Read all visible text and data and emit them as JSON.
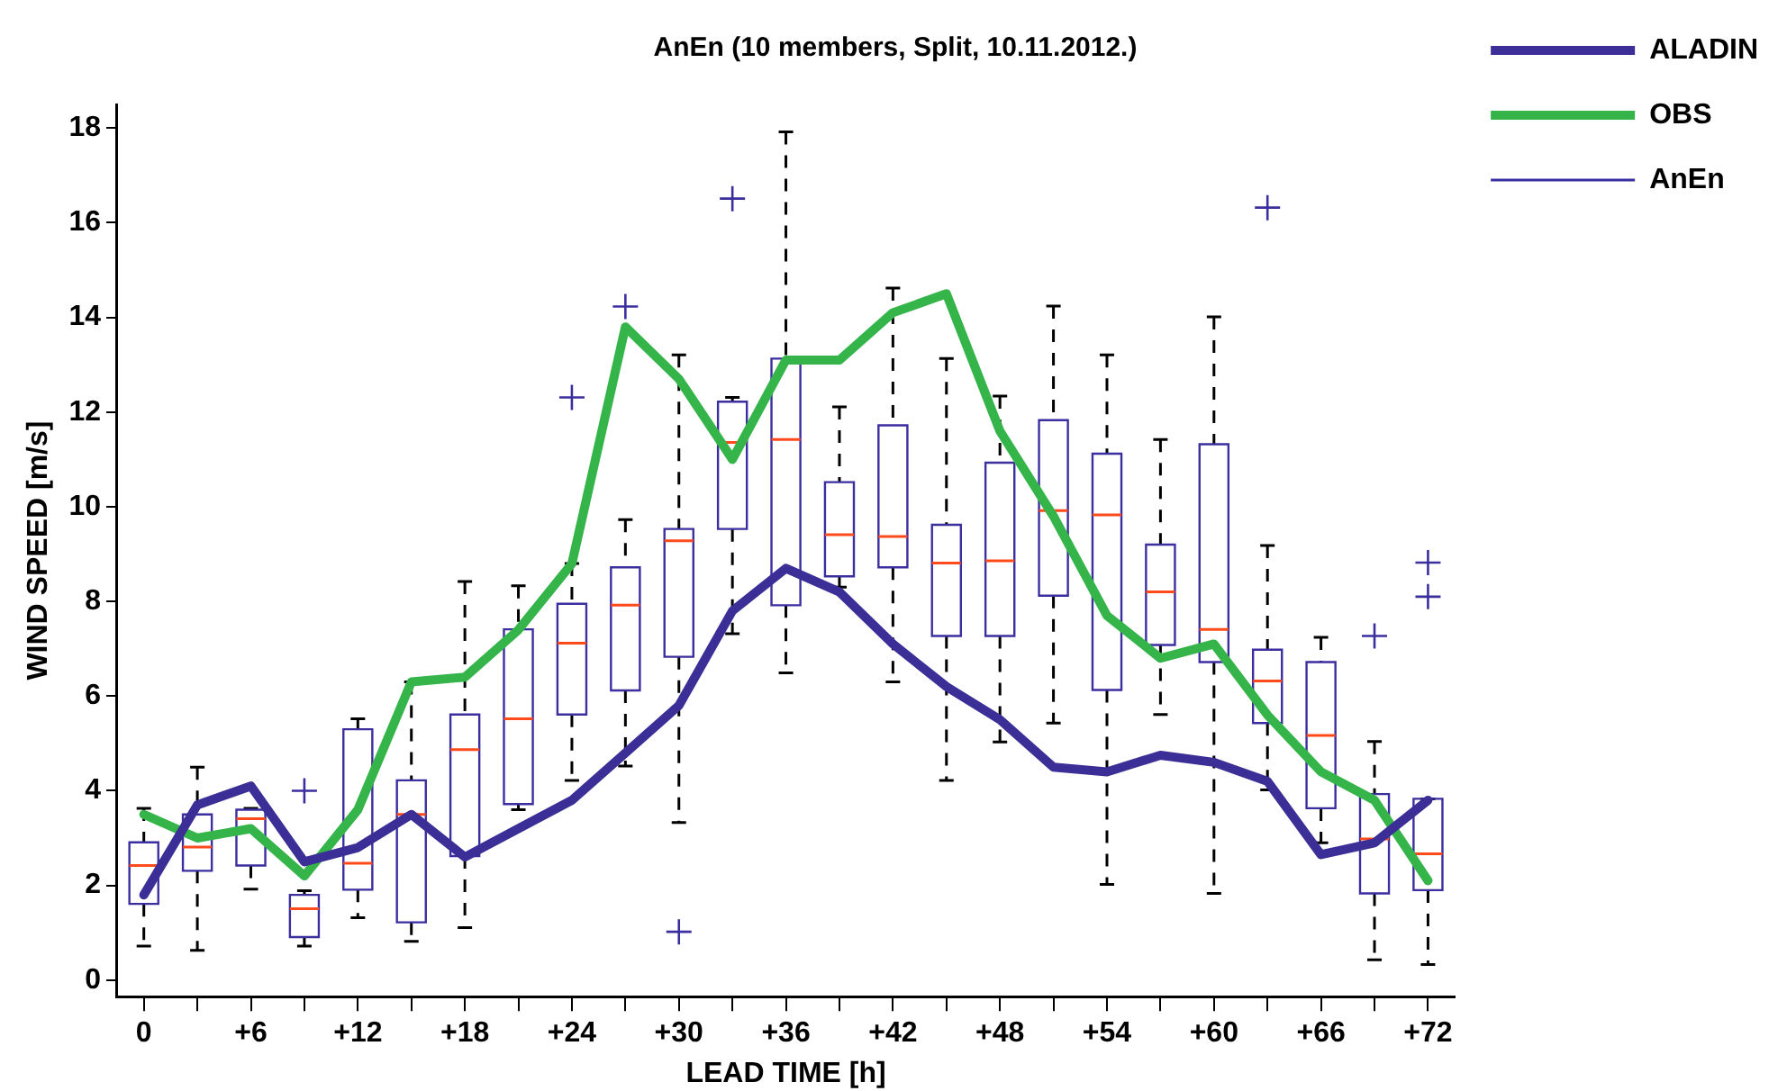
{
  "chart_data": {
    "type": "box",
    "title": "AnEn (10 members, Split, 10.11.2012.)",
    "xlabel": "LEAD TIME [h]",
    "ylabel": "WIND SPEED [m/s]",
    "categories": [
      "0",
      null,
      "+6",
      null,
      "+12",
      null,
      "+18",
      null,
      "+24",
      null,
      "+30",
      null,
      "+36",
      null,
      "+42",
      null,
      "+48",
      null,
      "+54",
      null,
      "+60",
      null,
      "+66",
      null,
      "+72"
    ],
    "ylim": [
      -0.35,
      18.5
    ],
    "yticks": [
      0,
      2,
      4,
      6,
      8,
      10,
      12,
      14,
      16,
      18
    ],
    "grid": false,
    "legend": "top right",
    "series": [
      {
        "name": "ALADIN",
        "type": "line",
        "color": "#3b2e96",
        "values": [
          1.8,
          3.7,
          4.1,
          2.5,
          2.8,
          3.5,
          2.6,
          3.2,
          3.8,
          4.8,
          5.8,
          7.8,
          8.7,
          8.2,
          7.1,
          6.2,
          5.5,
          4.5,
          4.4,
          4.75,
          4.6,
          4.2,
          2.65,
          2.9,
          3.8
        ]
      },
      {
        "name": "OBS",
        "type": "line",
        "color": "#35b44a",
        "values": [
          3.5,
          3.0,
          3.2,
          2.2,
          3.6,
          6.3,
          6.4,
          7.4,
          8.8,
          13.8,
          12.7,
          11.0,
          13.1,
          13.1,
          14.1,
          14.5,
          11.6,
          9.8,
          7.7,
          6.8,
          7.1,
          5.6,
          4.4,
          3.8,
          2.1
        ]
      },
      {
        "name": "AnEn",
        "type": "box",
        "color": "#3b2fa0",
        "boxes": [
          {
            "low": 0.72,
            "q1": 1.61,
            "median": 2.42,
            "q3": 2.91,
            "high": 3.63
          },
          {
            "low": 0.63,
            "q1": 2.31,
            "median": 2.81,
            "q3": 3.5,
            "high": 4.5
          },
          {
            "low": 1.92,
            "q1": 2.42,
            "median": 3.41,
            "q3": 3.6,
            "high": 3.63
          },
          {
            "low": 0.72,
            "q1": 0.91,
            "median": 1.51,
            "q3": 1.8,
            "high": 1.89,
            "outliers": [
              4.0
            ]
          },
          {
            "low": 1.32,
            "q1": 1.91,
            "median": 2.47,
            "q3": 5.3,
            "high": 5.52
          },
          {
            "low": 0.82,
            "q1": 1.22,
            "median": 3.5,
            "q3": 4.22,
            "high": 6.3
          },
          {
            "low": 1.11,
            "q1": 2.62,
            "median": 4.87,
            "q3": 5.61,
            "high": 8.42
          },
          {
            "low": 3.6,
            "q1": 3.72,
            "median": 5.52,
            "q3": 7.41,
            "high": 8.33
          },
          {
            "low": 4.22,
            "q1": 5.61,
            "median": 7.12,
            "q3": 7.95,
            "high": 8.8,
            "outliers": [
              12.31
            ]
          },
          {
            "low": 4.52,
            "q1": 6.12,
            "median": 7.92,
            "q3": 8.72,
            "high": 9.73,
            "outliers": [
              14.23
            ]
          },
          {
            "low": 3.33,
            "q1": 6.83,
            "median": 9.28,
            "q3": 9.53,
            "high": 13.21,
            "outliers": [
              1.02
            ]
          },
          {
            "low": 7.32,
            "q1": 9.53,
            "median": 11.36,
            "q3": 12.22,
            "high": 12.31,
            "outliers": [
              16.51
            ]
          },
          {
            "low": 6.49,
            "q1": 7.92,
            "median": 11.42,
            "q3": 13.13,
            "high": 17.92
          },
          {
            "low": 8.3,
            "q1": 8.53,
            "median": 9.41,
            "q3": 10.52,
            "high": 12.11
          },
          {
            "low": 6.3,
            "q1": 8.72,
            "median": 9.37,
            "q3": 11.72,
            "high": 14.62
          },
          {
            "low": 4.22,
            "q1": 7.27,
            "median": 8.81,
            "q3": 9.62,
            "high": 13.13
          },
          {
            "low": 5.03,
            "q1": 7.27,
            "median": 8.86,
            "q3": 10.93,
            "high": 12.34
          },
          {
            "low": 5.43,
            "q1": 8.12,
            "median": 9.92,
            "q3": 11.83,
            "high": 14.24
          },
          {
            "low": 2.02,
            "q1": 6.13,
            "median": 9.83,
            "q3": 11.12,
            "high": 13.21
          },
          {
            "low": 5.61,
            "q1": 7.08,
            "median": 8.2,
            "q3": 9.2,
            "high": 11.42
          },
          {
            "low": 1.83,
            "q1": 6.72,
            "median": 7.41,
            "q3": 11.32,
            "high": 14.01
          },
          {
            "low": 4.02,
            "q1": 5.43,
            "median": 6.32,
            "q3": 6.98,
            "high": 9.18,
            "outliers": [
              16.32
            ]
          },
          {
            "low": 2.9,
            "q1": 3.63,
            "median": 5.17,
            "q3": 6.72,
            "high": 7.24
          },
          {
            "low": 0.43,
            "q1": 1.83,
            "median": 2.98,
            "q3": 3.93,
            "high": 5.04,
            "outliers": [
              7.27
            ]
          },
          {
            "low": 0.33,
            "q1": 1.9,
            "median": 2.67,
            "q3": 3.83,
            "high": 3.83,
            "outliers": [
              8.82,
              8.1
            ]
          }
        ]
      }
    ]
  }
}
